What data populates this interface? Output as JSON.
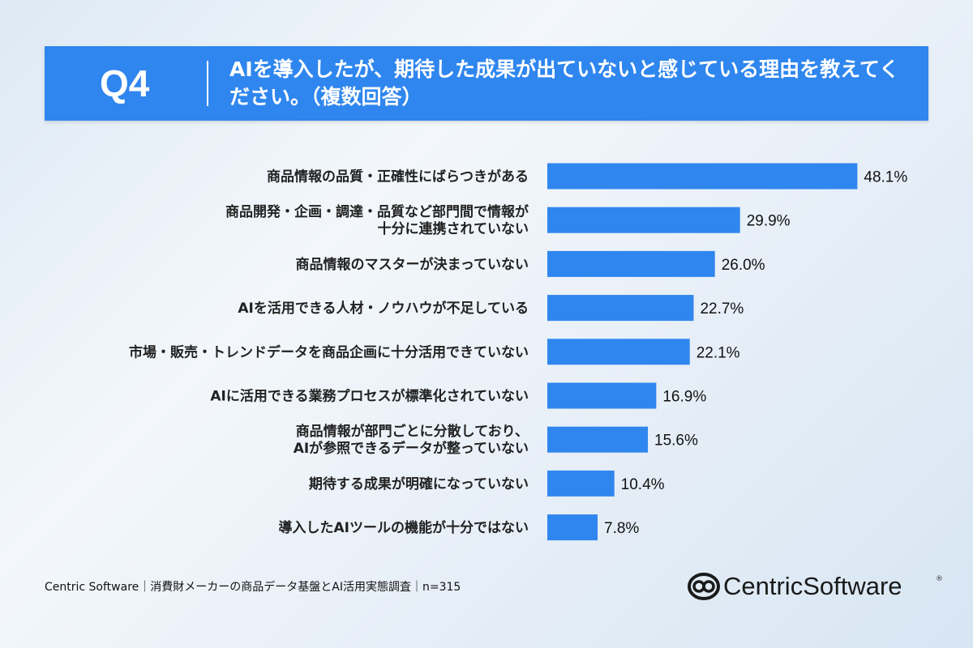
{
  "header": {
    "question_number": "Q4",
    "question_text": "AIを導入したが、期待した成果が出ていないと感じている理由を教えてください。（複数回答）"
  },
  "chart_data": {
    "type": "bar",
    "orientation": "horizontal",
    "title": "",
    "xlabel": "",
    "ylabel": "",
    "categories": [
      [
        "商品情報の品質・正確性にばらつきがある"
      ],
      [
        "商品開発・企画・調達・品質など部門間で情報が",
        "十分に連携されていない"
      ],
      [
        "商品情報のマスターが決まっていない"
      ],
      [
        "AIを活用できる人材・ノウハウが不足している"
      ],
      [
        "市場・販売・トレンドデータを商品企画に十分活用できていない"
      ],
      [
        "AIに活用できる業務プロセスが標準化されていない"
      ],
      [
        "商品情報が部門ごとに分散しており、",
        "AIが参照できるデータが整っていない"
      ],
      [
        "期待する成果が明確になっていない"
      ],
      [
        "導入したAIツールの機能が十分ではない"
      ]
    ],
    "values": [
      48.1,
      29.9,
      26.0,
      22.7,
      22.1,
      16.9,
      15.6,
      10.4,
      7.8
    ],
    "value_labels": [
      "48.1%",
      "29.9%",
      "26.0%",
      "22.7%",
      "22.1%",
      "16.9%",
      "15.6%",
      "10.4%",
      "7.8%"
    ],
    "bar_color": "#2f86ee",
    "grid": false,
    "legend": "none"
  },
  "footer": {
    "source": "Centric Software｜消費財メーカーの商品データ基盤とAI活用実態調査｜n=315",
    "logo_text": "CentricSoftware",
    "logo_mark": "®"
  }
}
